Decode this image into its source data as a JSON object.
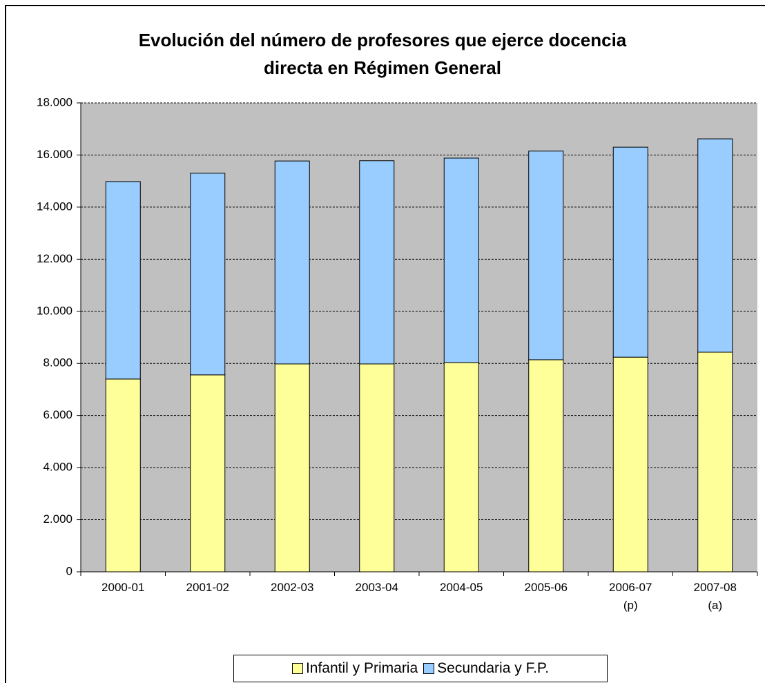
{
  "chart_data": {
    "type": "stacked_bar",
    "title": "Evolución del número de profesores que ejerce docencia\ndirecta en Régimen General",
    "categories": [
      "2000-01",
      "2001-02",
      "2002-03",
      "2003-04",
      "2004-05",
      "2005-06",
      "2006-07\n(p)",
      "2007-08\n(a)"
    ],
    "series": [
      {
        "name": "Infantil y Primaria",
        "color": "#ffff99",
        "values": [
          7400,
          7560,
          7980,
          7980,
          8030,
          8140,
          8240,
          8430
        ]
      },
      {
        "name": "Secundaria y F.P.",
        "color": "#99ccff",
        "values": [
          7580,
          7740,
          7790,
          7800,
          7850,
          8010,
          8060,
          8190
        ]
      }
    ],
    "ylim": [
      0,
      18000
    ],
    "yticks": [
      0,
      {
        "value": 2000,
        "label": "2.000"
      },
      {
        "value": 4000,
        "label": "4.000"
      },
      {
        "value": 6000,
        "label": "6.000"
      },
      {
        "value": 8000,
        "label": "8.000"
      },
      {
        "value": 10000,
        "label": "10.000"
      },
      {
        "value": 12000,
        "label": "12.000"
      },
      {
        "value": 14000,
        "label": "14.000"
      },
      {
        "value": 16000,
        "label": "16.000"
      },
      {
        "value": 18000,
        "label": "18.000"
      }
    ],
    "grid": true,
    "plot_background": "#c0c0c0",
    "legend": "bottom"
  }
}
